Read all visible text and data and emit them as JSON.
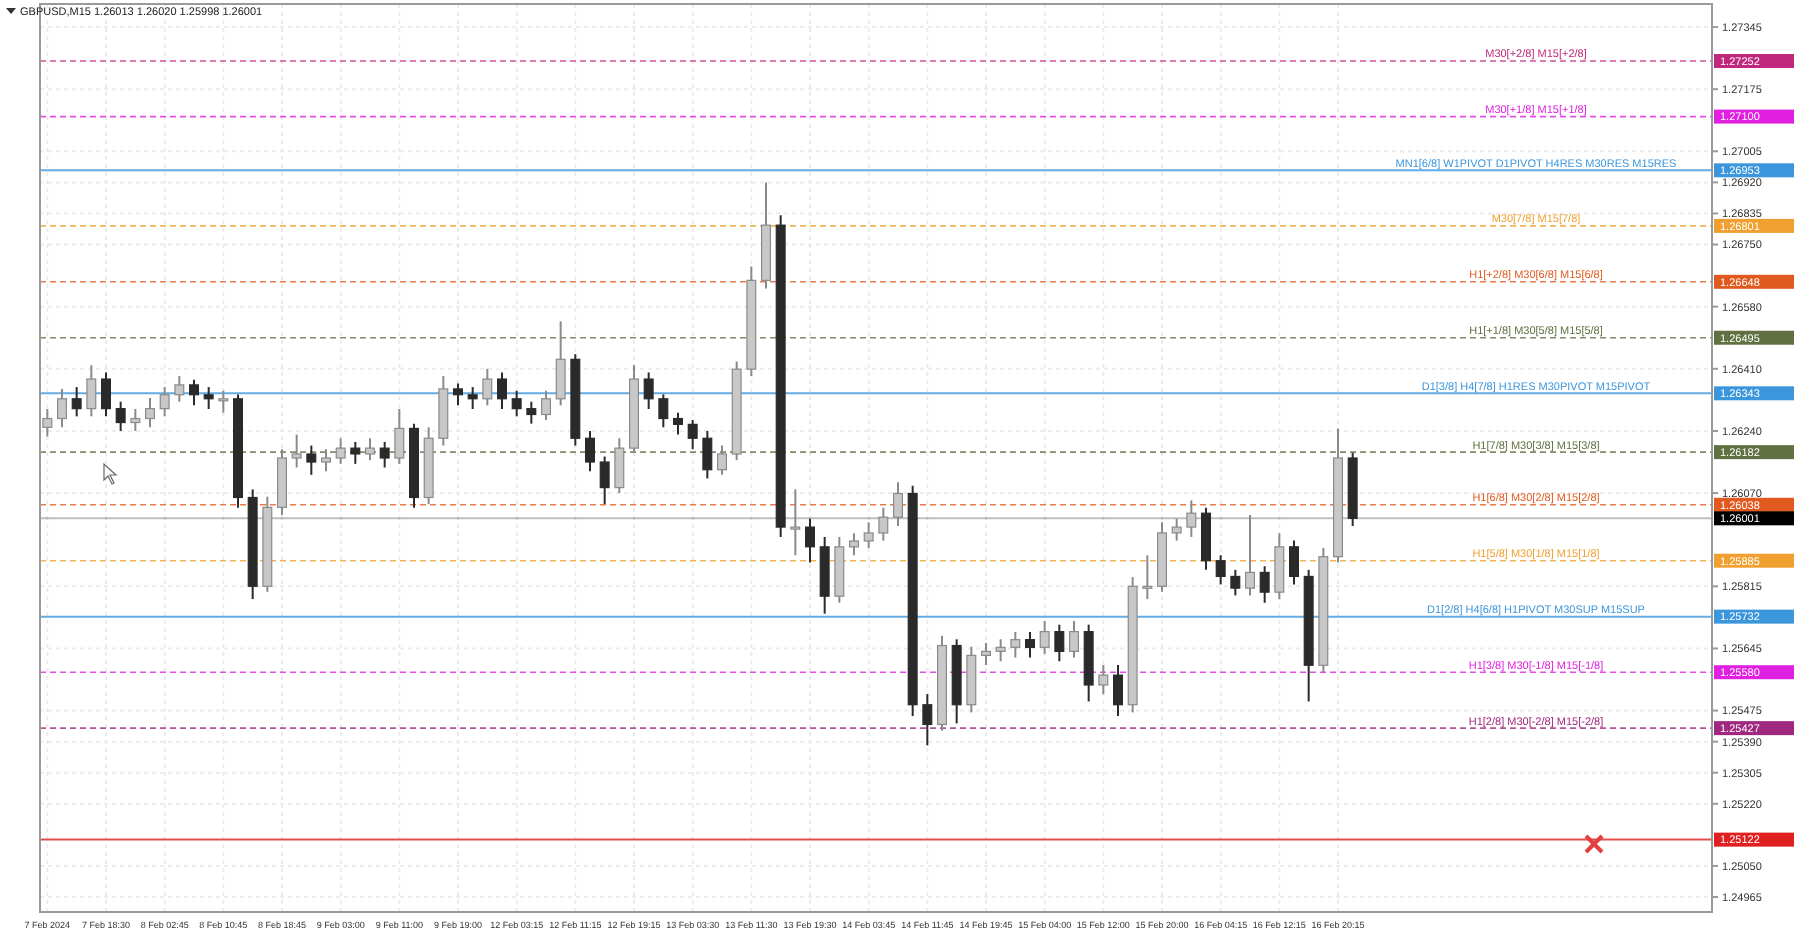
{
  "chart_data": {
    "type": "candlestick",
    "title": "GBPUSD,M15  1.26013 1.26020 1.25998 1.26001",
    "categories": [
      "7 Feb 2024",
      null,
      null,
      null,
      "7 Feb 18:30",
      null,
      null,
      null,
      "8 Feb 02:45",
      null,
      null,
      null,
      "8 Feb 10:45",
      null,
      null,
      null,
      "8 Feb 18:45",
      null,
      null,
      null,
      "9 Feb 03:00",
      null,
      null,
      null,
      "9 Feb 11:00",
      null,
      null,
      null,
      "9 Feb 19:00",
      null,
      null,
      null,
      "12 Feb 03:15",
      null,
      null,
      null,
      "12 Feb 11:15",
      null,
      null,
      null,
      "12 Feb 19:15",
      null,
      null,
      null,
      "13 Feb 03:30",
      null,
      null,
      null,
      "13 Feb 11:30",
      null,
      null,
      null,
      "13 Feb 19:30",
      null,
      null,
      null,
      "14 Feb 03:45",
      null,
      null,
      null,
      "14 Feb 11:45",
      null,
      null,
      null,
      "14 Feb 19:45",
      null,
      null,
      null,
      "15 Feb 04:00",
      null,
      null,
      null,
      "15 Feb 12:00",
      null,
      null,
      null,
      "15 Feb 20:00",
      null,
      null,
      null,
      "16 Feb 04:15",
      null,
      null,
      null,
      "16 Feb 12:15",
      null,
      null,
      null,
      "16 Feb 20:15",
      null,
      null,
      null,
      null,
      null,
      null,
      null,
      null,
      null,
      null,
      null,
      null,
      null,
      null,
      null,
      null,
      null,
      null,
      null,
      null,
      null,
      null,
      null,
      null,
      null
    ],
    "ohlc": [
      [
        1.2625,
        1.263,
        1.26225,
        1.26274
      ],
      [
        1.26274,
        1.26355,
        1.2625,
        1.26328
      ],
      [
        1.26328,
        1.2636,
        1.2628,
        1.26301
      ],
      [
        1.26301,
        1.2642,
        1.2628,
        1.26382
      ],
      [
        1.26382,
        1.264,
        1.2628,
        1.26301
      ],
      [
        1.26301,
        1.2632,
        1.2624,
        1.26263
      ],
      [
        1.26263,
        1.263,
        1.2624,
        1.26274
      ],
      [
        1.26274,
        1.2633,
        1.2625,
        1.26301
      ],
      [
        1.26301,
        1.2636,
        1.2628,
        1.26339
      ],
      [
        1.26339,
        1.2639,
        1.2632,
        1.26366
      ],
      [
        1.26366,
        1.2638,
        1.2631,
        1.26339
      ],
      [
        1.26339,
        1.2636,
        1.263,
        1.26328
      ],
      [
        1.26328,
        1.2635,
        1.2629,
        1.26328
      ],
      [
        1.26328,
        1.2634,
        1.2603,
        1.26058
      ],
      [
        1.26058,
        1.2608,
        1.2578,
        1.25815
      ],
      [
        1.25815,
        1.2606,
        1.258,
        1.26031
      ],
      [
        1.26031,
        1.2619,
        1.2601,
        1.26166
      ],
      [
        1.26166,
        1.2623,
        1.2614,
        1.26177
      ],
      [
        1.26177,
        1.262,
        1.2612,
        1.26155
      ],
      [
        1.26155,
        1.2619,
        1.2613,
        1.26166
      ],
      [
        1.26166,
        1.2622,
        1.2615,
        1.26193
      ],
      [
        1.26193,
        1.2621,
        1.2615,
        1.26177
      ],
      [
        1.26177,
        1.2622,
        1.2616,
        1.26193
      ],
      [
        1.26193,
        1.2621,
        1.2614,
        1.26166
      ],
      [
        1.26166,
        1.263,
        1.2615,
        1.26247
      ],
      [
        1.26247,
        1.2626,
        1.2603,
        1.26058
      ],
      [
        1.26058,
        1.2625,
        1.2604,
        1.2622
      ],
      [
        1.2622,
        1.2639,
        1.262,
        1.26355
      ],
      [
        1.26355,
        1.2637,
        1.2631,
        1.26339
      ],
      [
        1.26339,
        1.2636,
        1.263,
        1.26328
      ],
      [
        1.26328,
        1.2641,
        1.2631,
        1.26382
      ],
      [
        1.26382,
        1.264,
        1.263,
        1.26328
      ],
      [
        1.26328,
        1.2635,
        1.2628,
        1.26301
      ],
      [
        1.26301,
        1.2632,
        1.2626,
        1.26285
      ],
      [
        1.26285,
        1.2635,
        1.2627,
        1.26328
      ],
      [
        1.26328,
        1.2654,
        1.2631,
        1.26436
      ],
      [
        1.26436,
        1.2645,
        1.262,
        1.2622
      ],
      [
        1.2622,
        1.2624,
        1.2613,
        1.26155
      ],
      [
        1.26155,
        1.2617,
        1.2604,
        1.26085
      ],
      [
        1.26085,
        1.2622,
        1.2607,
        1.26193
      ],
      [
        1.26193,
        1.2642,
        1.2618,
        1.26382
      ],
      [
        1.26382,
        1.264,
        1.263,
        1.26328
      ],
      [
        1.26328,
        1.2634,
        1.2625,
        1.26274
      ],
      [
        1.26274,
        1.2629,
        1.2623,
        1.26258
      ],
      [
        1.26258,
        1.2627,
        1.2619,
        1.2622
      ],
      [
        1.2622,
        1.2624,
        1.2611,
        1.26134
      ],
      [
        1.26134,
        1.262,
        1.2612,
        1.26177
      ],
      [
        1.26177,
        1.2643,
        1.2616,
        1.26409
      ],
      [
        1.26409,
        1.2669,
        1.2639,
        1.26652
      ],
      [
        1.26652,
        1.2692,
        1.2663,
        1.26803
      ],
      [
        1.26803,
        1.2683,
        1.2595,
        1.25977
      ],
      [
        1.25977,
        1.2608,
        1.259,
        1.25977
      ],
      [
        1.25977,
        1.26,
        1.2588,
        1.25923
      ],
      [
        1.25923,
        1.2595,
        1.2574,
        1.25788
      ],
      [
        1.25788,
        1.2595,
        1.2577,
        1.25923
      ],
      [
        1.25923,
        1.2596,
        1.259,
        1.25939
      ],
      [
        1.25939,
        1.2599,
        1.2592,
        1.25961
      ],
      [
        1.25961,
        1.2603,
        1.2594,
        1.26004
      ],
      [
        1.26004,
        1.261,
        1.2598,
        1.26069
      ],
      [
        1.26069,
        1.2609,
        1.2546,
        1.25491
      ],
      [
        1.25491,
        1.2552,
        1.2538,
        1.25437
      ],
      [
        1.25437,
        1.2568,
        1.2542,
        1.25653
      ],
      [
        1.25653,
        1.2567,
        1.2544,
        1.25491
      ],
      [
        1.25491,
        1.2565,
        1.2547,
        1.25626
      ],
      [
        1.25626,
        1.2566,
        1.256,
        1.25637
      ],
      [
        1.25637,
        1.2567,
        1.2561,
        1.25648
      ],
      [
        1.25648,
        1.2569,
        1.2562,
        1.25669
      ],
      [
        1.25669,
        1.2569,
        1.2562,
        1.25648
      ],
      [
        1.25648,
        1.2572,
        1.2563,
        1.25691
      ],
      [
        1.25691,
        1.2571,
        1.2561,
        1.25637
      ],
      [
        1.25637,
        1.2572,
        1.2562,
        1.25691
      ],
      [
        1.25691,
        1.2571,
        1.255,
        1.25545
      ],
      [
        1.25545,
        1.256,
        1.2552,
        1.25572
      ],
      [
        1.25572,
        1.256,
        1.2546,
        1.25491
      ],
      [
        1.25491,
        1.2584,
        1.2547,
        1.25815
      ],
      [
        1.25815,
        1.259,
        1.2578,
        1.25815
      ],
      [
        1.25815,
        1.2599,
        1.258,
        1.25961
      ],
      [
        1.25961,
        1.26,
        1.2594,
        1.25977
      ],
      [
        1.25977,
        1.2605,
        1.2595,
        1.26015
      ],
      [
        1.26015,
        1.2603,
        1.2586,
        1.25885
      ],
      [
        1.25885,
        1.259,
        1.2582,
        1.25842
      ],
      [
        1.25842,
        1.2586,
        1.2579,
        1.2581
      ],
      [
        1.2581,
        1.2601,
        1.2579,
        1.25853
      ],
      [
        1.25853,
        1.2587,
        1.2577,
        1.25799
      ],
      [
        1.25799,
        1.2596,
        1.2578,
        1.25923
      ],
      [
        1.25923,
        1.2594,
        1.2582,
        1.25842
      ],
      [
        1.25842,
        1.2586,
        1.255,
        1.25599
      ],
      [
        1.25599,
        1.2592,
        1.2558,
        1.25896
      ],
      [
        1.25896,
        1.26247,
        1.2588,
        1.26166
      ],
      [
        1.26166,
        1.2618,
        1.2598,
        1.26001
      ],
      null,
      null,
      null,
      null,
      null,
      null,
      null,
      null,
      null,
      null,
      null,
      null,
      null,
      null,
      null,
      null,
      null,
      null,
      null,
      null,
      null,
      null,
      null,
      null
    ],
    "ylim": [
      1.24924,
      1.27408
    ],
    "yticks": [
      1.27345,
      1.27175,
      1.27005,
      {
        "value": 1.2692,
        "label": "1.26920"
      },
      1.26835,
      {
        "value": 1.2675,
        "label": "1.26750"
      },
      {
        "value": 1.2658,
        "label": "1.26580"
      },
      {
        "value": 1.2641,
        "label": "1.26410"
      },
      {
        "value": 1.2624,
        "label": "1.26240"
      },
      {
        "value": 1.2607,
        "label": "1.26070"
      },
      1.25815,
      1.25645,
      1.25475,
      {
        "value": 1.2539,
        "label": "1.25390"
      },
      1.25305,
      {
        "value": 1.2522,
        "label": "1.25220"
      },
      {
        "value": 1.2505,
        "label": "1.25050"
      },
      1.24965
    ],
    "grid": true,
    "ref_lines": [
      {
        "axis": "y",
        "value": 1.27252,
        "label": "1.27252",
        "color": "#c0287e",
        "line_style": "dashed"
      },
      {
        "axis": "y",
        "value": 1.271,
        "label": "1.27100",
        "color": "#e020e0",
        "line_style": "dashed"
      },
      {
        "axis": "y",
        "value": 1.26953,
        "label": "1.26953",
        "color": "#3c96dc",
        "line_style": "solid"
      },
      {
        "axis": "y",
        "value": 1.26801,
        "label": "1.26801",
        "color": "#f0a030",
        "line_style": "dashed"
      },
      {
        "axis": "y",
        "value": 1.26648,
        "label": "1.26648",
        "color": "#e05a20",
        "line_style": "dashed"
      },
      {
        "axis": "y",
        "value": 1.26495,
        "label": "1.26495",
        "color": "#607040",
        "line_style": "dashed"
      },
      {
        "axis": "y",
        "value": 1.26343,
        "label": "1.26343",
        "color": "#3c96dc",
        "line_style": "solid"
      },
      {
        "axis": "y",
        "value": 1.26182,
        "label": "1.26182",
        "color": "#607040",
        "line_style": "dashed"
      },
      {
        "axis": "y",
        "value": 1.26038,
        "label": "1.26038",
        "color": "#e05a20",
        "line_style": "dashed"
      },
      {
        "axis": "y",
        "value": 1.26001,
        "label": "1.26001",
        "color": "#000000",
        "line_style": "solid"
      },
      {
        "axis": "y",
        "value": 1.25885,
        "label": "1.25885",
        "color": "#f0a030",
        "line_style": "dashed"
      },
      {
        "axis": "y",
        "value": 1.25732,
        "label": "1.25732",
        "color": "#3c96dc",
        "line_style": "solid"
      },
      {
        "axis": "y",
        "value": 1.2558,
        "label": "1.25580",
        "color": "#e020e0",
        "line_style": "dashed"
      },
      {
        "axis": "y",
        "value": 1.25427,
        "label": "1.25427",
        "color": "#a0287e",
        "line_style": "dashed"
      },
      {
        "axis": "y",
        "value": 1.25122,
        "label": "1.25122",
        "color": "#e02020",
        "line_style": "solid"
      }
    ],
    "annotations": [
      {
        "text": "M30[+2/8] M15[+2/8]",
        "y": 1.27252
      },
      {
        "text": "M30[+1/8] M15[+1/8]",
        "y": 1.271
      },
      {
        "text": "MN1[6/8] W1PIVOT D1PIVOT H4RES M30RES M15RES",
        "y": 1.26953
      },
      {
        "text": "M30[7/8] M15[7/8]",
        "y": 1.26801
      },
      {
        "text": "H1[+2/8] M30[6/8] M15[6/8]",
        "y": 1.26648
      },
      {
        "text": "H1[+1/8] M30[5/8] M15[5/8]",
        "y": 1.26495
      },
      {
        "text": "D1[3/8] H4[7/8] H1RES M30PIVOT M15PIVOT",
        "y": 1.26343
      },
      {
        "text": "H1[7/8] M30[3/8] M15[3/8]",
        "y": 1.26182
      },
      {
        "text": "H1[6/8] M30[2/8] M15[2/8]",
        "y": 1.26038
      },
      {
        "text": "H1[5/8] M30[1/8] M15[1/8]",
        "y": 1.25885
      },
      {
        "text": "D1[2/8] H4[6/8] H1PIVOT M30SUP M15SUP",
        "y": 1.25732
      },
      {
        "text": "H1[3/8] M30[-1/8] M15[-1/8]",
        "y": 1.2558
      },
      {
        "text": "H1[2/8] M30[-2/8] M15[-2/8]",
        "y": 1.25427
      }
    ]
  }
}
